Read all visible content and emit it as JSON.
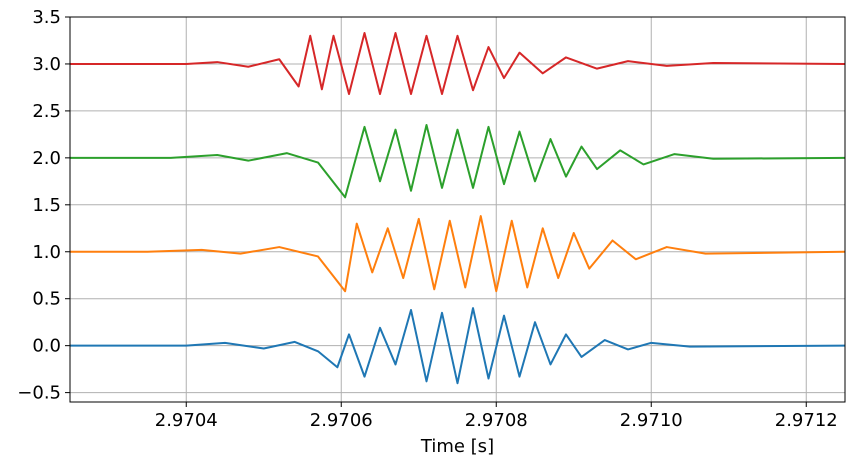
{
  "chart_data": {
    "type": "line",
    "title": "",
    "xlabel": "Time [s]",
    "ylabel": "",
    "xlim": [
      2.97025,
      2.97125
    ],
    "ylim": [
      -0.6,
      3.5
    ],
    "grid": true,
    "legend": "none",
    "x_ticks": [
      2.9704,
      2.9706,
      2.9708,
      2.971,
      2.9712
    ],
    "x_tick_labels": [
      "2.9704",
      "2.9706",
      "2.9708",
      "2.9710",
      "2.9712"
    ],
    "y_ticks": [
      -0.5,
      0.0,
      0.5,
      1.0,
      1.5,
      2.0,
      2.5,
      3.0,
      3.5
    ],
    "y_tick_labels": [
      "−0.5",
      "0.0",
      "0.5",
      "1.0",
      "1.5",
      "2.0",
      "2.5",
      "3.0",
      "3.5"
    ],
    "series": [
      {
        "color": "#1f77b4",
        "baseline": 0.0,
        "x": [
          2.97025,
          2.9704,
          2.97045,
          2.9705,
          2.97054,
          2.97057,
          2.970595,
          2.97061,
          2.97063,
          2.97065,
          2.97067,
          2.97069,
          2.97071,
          2.97073,
          2.97075,
          2.97077,
          2.97079,
          2.97081,
          2.97083,
          2.97085,
          2.97087,
          2.97089,
          2.97091,
          2.97094,
          2.97097,
          2.971,
          2.97105,
          2.97125
        ],
        "y": [
          0.0,
          0.0,
          0.03,
          -0.03,
          0.04,
          -0.06,
          -0.23,
          0.12,
          -0.33,
          0.19,
          -0.2,
          0.38,
          -0.38,
          0.35,
          -0.4,
          0.4,
          -0.35,
          0.32,
          -0.33,
          0.25,
          -0.2,
          0.12,
          -0.12,
          0.06,
          -0.04,
          0.03,
          -0.01,
          0.0
        ]
      },
      {
        "color": "#ff7f0e",
        "baseline": 1.0,
        "x": [
          2.97025,
          2.97035,
          2.97042,
          2.97047,
          2.97052,
          2.97057,
          2.970605,
          2.97062,
          2.97064,
          2.97066,
          2.97068,
          2.9707,
          2.97072,
          2.97074,
          2.97076,
          2.97078,
          2.9708,
          2.97082,
          2.97084,
          2.97086,
          2.97088,
          2.9709,
          2.97092,
          2.97095,
          2.97098,
          2.97102,
          2.97107,
          2.97125
        ],
        "y": [
          1.0,
          1.0,
          1.02,
          0.98,
          1.05,
          0.95,
          0.58,
          1.3,
          0.78,
          1.25,
          0.72,
          1.35,
          0.6,
          1.33,
          0.62,
          1.38,
          0.58,
          1.33,
          0.62,
          1.25,
          0.72,
          1.2,
          0.82,
          1.12,
          0.92,
          1.05,
          0.98,
          1.0
        ]
      },
      {
        "color": "#2ca02c",
        "baseline": 2.0,
        "x": [
          2.97025,
          2.97038,
          2.97044,
          2.97048,
          2.97053,
          2.97057,
          2.970605,
          2.97063,
          2.97065,
          2.97067,
          2.97069,
          2.97071,
          2.97073,
          2.97075,
          2.97077,
          2.97079,
          2.97081,
          2.97083,
          2.97085,
          2.97087,
          2.97089,
          2.97091,
          2.97093,
          2.97096,
          2.97099,
          2.97103,
          2.97108,
          2.97125
        ],
        "y": [
          2.0,
          2.0,
          2.03,
          1.97,
          2.05,
          1.95,
          1.58,
          2.33,
          1.75,
          2.3,
          1.65,
          2.35,
          1.68,
          2.3,
          1.68,
          2.33,
          1.72,
          2.28,
          1.75,
          2.2,
          1.8,
          2.12,
          1.88,
          2.08,
          1.93,
          2.04,
          1.99,
          2.0
        ]
      },
      {
        "color": "#d62728",
        "baseline": 3.0,
        "x": [
          2.97025,
          2.9704,
          2.97044,
          2.97048,
          2.97052,
          2.970545,
          2.97056,
          2.970575,
          2.97059,
          2.97061,
          2.97063,
          2.97065,
          2.97067,
          2.97069,
          2.97071,
          2.97073,
          2.97075,
          2.97077,
          2.97079,
          2.97081,
          2.97083,
          2.97086,
          2.97089,
          2.97093,
          2.97097,
          2.97102,
          2.97108,
          2.97125
        ],
        "y": [
          3.0,
          3.0,
          3.02,
          2.97,
          3.05,
          2.76,
          3.3,
          2.73,
          3.3,
          2.68,
          3.33,
          2.68,
          3.33,
          2.68,
          3.3,
          2.68,
          3.3,
          2.72,
          3.18,
          2.85,
          3.12,
          2.9,
          3.07,
          2.95,
          3.03,
          2.98,
          3.01,
          3.0
        ]
      }
    ]
  }
}
